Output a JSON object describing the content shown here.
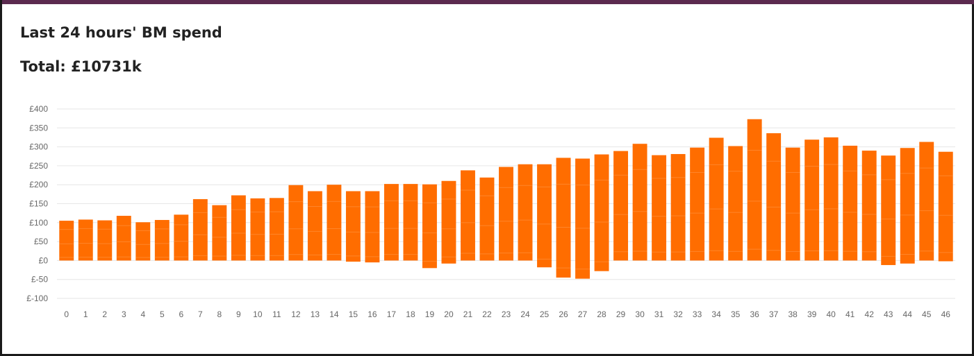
{
  "header": {
    "title": "Last 24 hours' BM spend",
    "total_label": "Total:",
    "total_value": "£10731k"
  },
  "colors": {
    "bar": "#ff6d00",
    "bar_stripe": "#ff9a4d",
    "grid": "#e6e6e6",
    "top_bar": "#5b2a4f"
  },
  "chart_data": {
    "type": "bar",
    "title": "",
    "xlabel": "",
    "ylabel": "",
    "ylim": [
      -100,
      400
    ],
    "yticks": [
      400,
      350,
      300,
      250,
      200,
      150,
      100,
      50,
      0,
      -50,
      -100
    ],
    "ytick_labels": [
      "£400",
      "£350",
      "£300",
      "£250",
      "£200",
      "£150",
      "£100",
      "£50",
      "£0",
      "£-50",
      "£-100"
    ],
    "grid": true,
    "categories": [
      "0",
      "1",
      "2",
      "3",
      "4",
      "5",
      "6",
      "7",
      "8",
      "9",
      "10",
      "11",
      "12",
      "13",
      "14",
      "15",
      "16",
      "17",
      "18",
      "19",
      "20",
      "21",
      "22",
      "23",
      "24",
      "25",
      "26",
      "27",
      "28",
      "29",
      "30",
      "31",
      "32",
      "33",
      "34",
      "35",
      "36",
      "37",
      "38",
      "39",
      "40",
      "41",
      "42",
      "43",
      "44",
      "45",
      "46"
    ],
    "ranges": [
      [
        0,
        105
      ],
      [
        0,
        108
      ],
      [
        0,
        106
      ],
      [
        0,
        118
      ],
      [
        0,
        101
      ],
      [
        0,
        107
      ],
      [
        0,
        121
      ],
      [
        0,
        162
      ],
      [
        0,
        146
      ],
      [
        0,
        172
      ],
      [
        0,
        164
      ],
      [
        0,
        165
      ],
      [
        0,
        199
      ],
      [
        0,
        183
      ],
      [
        0,
        200
      ],
      [
        -3,
        183
      ],
      [
        -5,
        183
      ],
      [
        0,
        202
      ],
      [
        0,
        202
      ],
      [
        -20,
        201
      ],
      [
        -8,
        210
      ],
      [
        0,
        238
      ],
      [
        0,
        219
      ],
      [
        0,
        247
      ],
      [
        0,
        254
      ],
      [
        -18,
        254
      ],
      [
        -45,
        271
      ],
      [
        -48,
        269
      ],
      [
        -28,
        280
      ],
      [
        0,
        289
      ],
      [
        0,
        308
      ],
      [
        0,
        278
      ],
      [
        0,
        281
      ],
      [
        0,
        298
      ],
      [
        0,
        324
      ],
      [
        0,
        302
      ],
      [
        0,
        373
      ],
      [
        0,
        336
      ],
      [
        0,
        298
      ],
      [
        0,
        319
      ],
      [
        0,
        325
      ],
      [
        0,
        303
      ],
      [
        0,
        290
      ],
      [
        -12,
        277
      ],
      [
        -8,
        297
      ],
      [
        0,
        313
      ],
      [
        -2,
        287
      ]
    ]
  }
}
